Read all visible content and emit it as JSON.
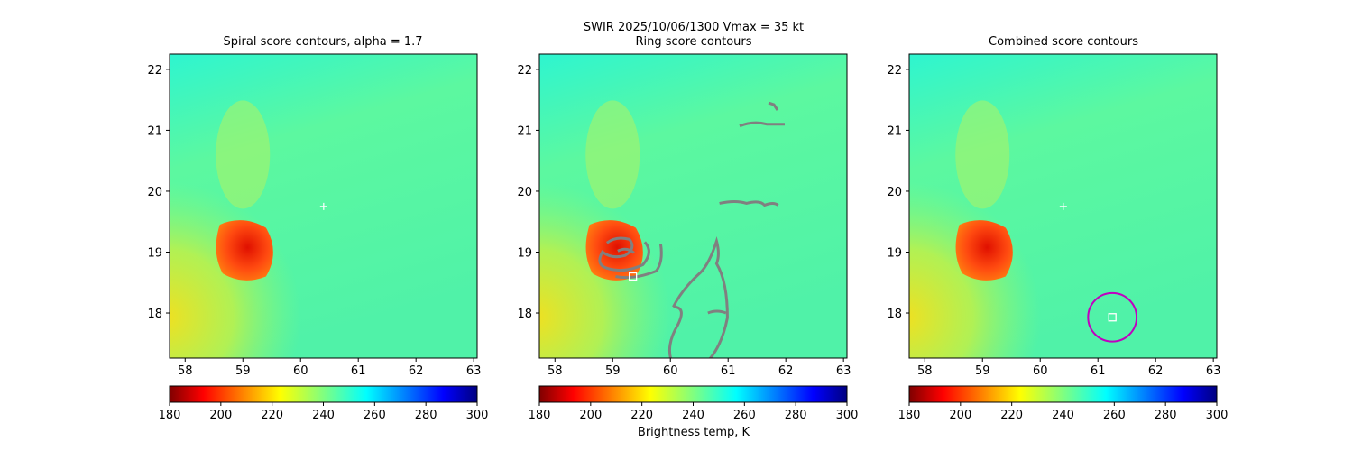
{
  "suptitle": "SWIR  2025/10/06/1300    Vmax = 35 kt",
  "colorbar_label": "Brightness temp, K",
  "chart_data": {
    "type": "heatmap",
    "panels": [
      {
        "title": "Spiral score contours, alpha =  1.7",
        "markers": {
          "plus": [
            60.4,
            19.75
          ]
        }
      },
      {
        "title": "Ring score contours",
        "markers": {
          "square": [
            59.35,
            18.6
          ]
        },
        "contours": "gray ring score contours"
      },
      {
        "title": "Combined score contours",
        "markers": {
          "plus": [
            60.4,
            19.75
          ],
          "square": [
            61.25,
            17.93
          ],
          "circle": {
            "center": [
              61.25,
              17.93
            ],
            "radius_deg": 0.42
          }
        }
      }
    ],
    "xlim": [
      57.73,
      63.06
    ],
    "ylim": [
      17.26,
      22.25
    ],
    "xticks": [
      58,
      59,
      60,
      61,
      62,
      63
    ],
    "yticks": [
      18,
      19,
      20,
      21,
      22
    ],
    "colorbar": {
      "cmap": "jet_r",
      "range": [
        180,
        300
      ],
      "ticks": [
        180,
        200,
        220,
        240,
        260,
        280,
        300
      ]
    },
    "colors": {
      "contour": "#808080",
      "marker": "#ffffff",
      "circle": "#c000c0"
    }
  }
}
